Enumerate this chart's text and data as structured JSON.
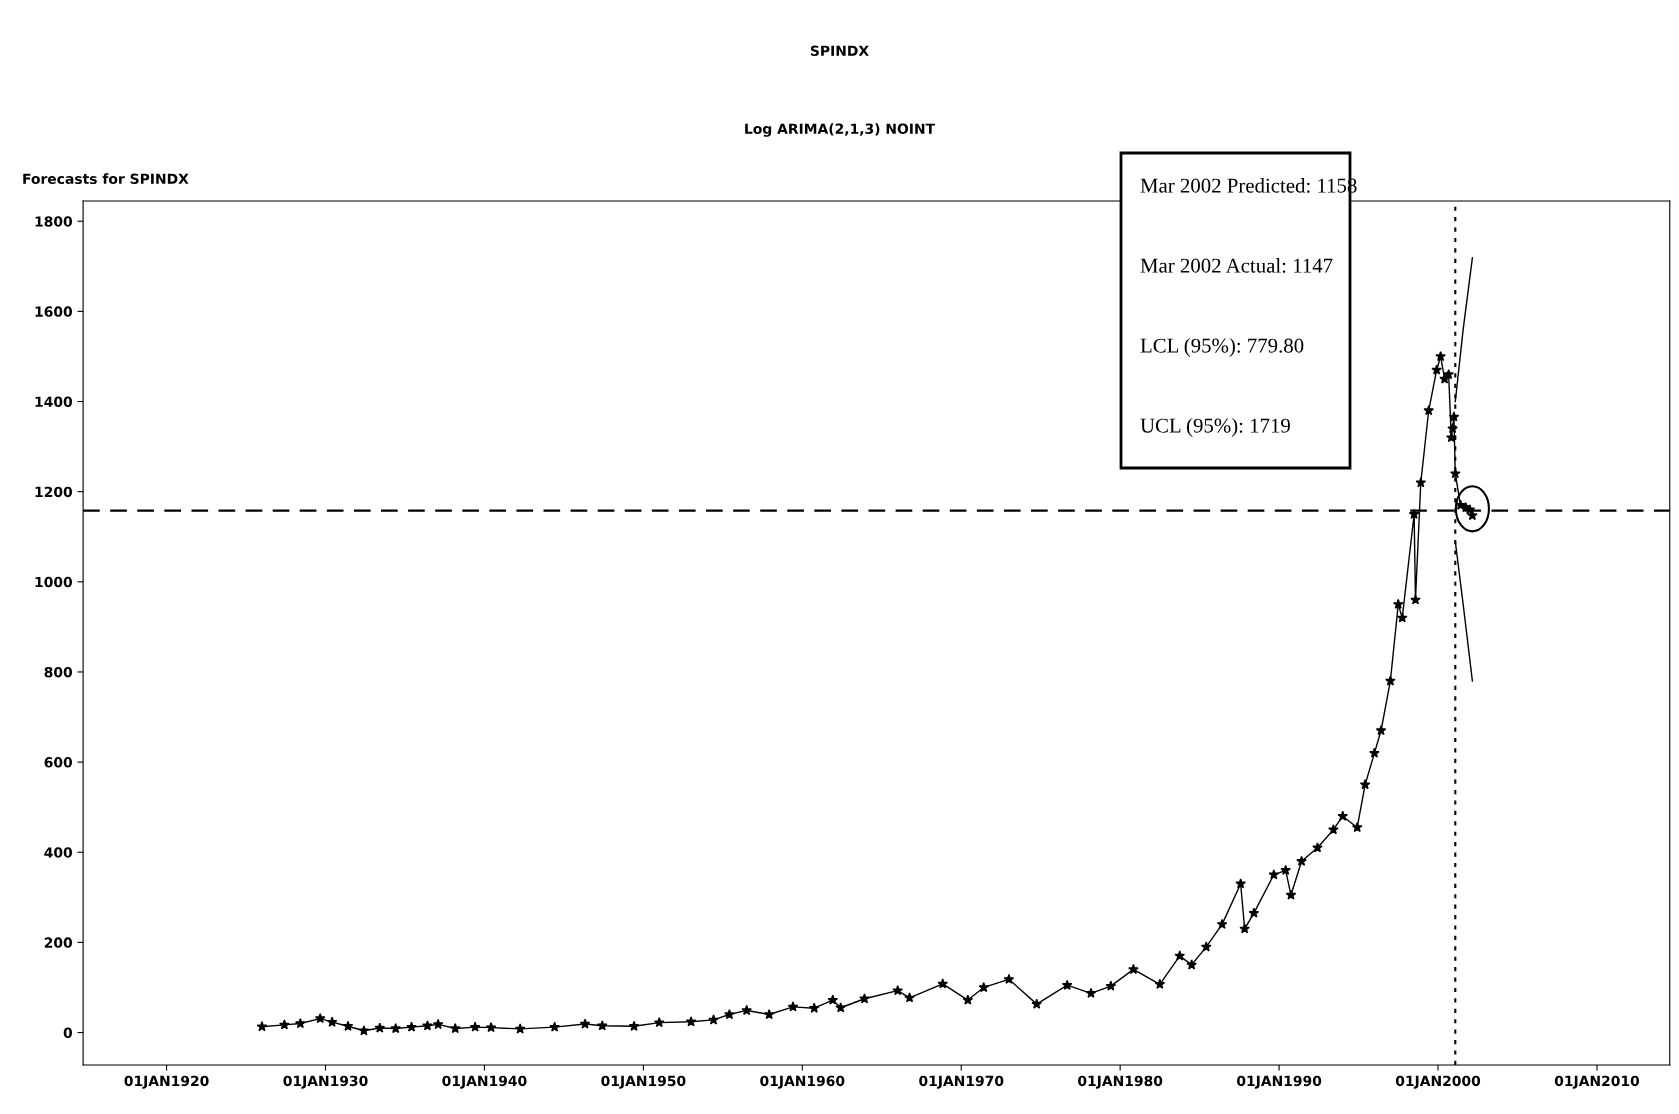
{
  "chart_data": {
    "type": "line",
    "title": "SPINDX",
    "subtitle": "Log ARIMA(2,1,3) NOINT",
    "ylabel": "Forecasts for SPINDX",
    "xlim": [
      "1914-10-01",
      "2014-08-01"
    ],
    "xticks": [
      {
        "value": "1920-01-01",
        "label": "01JAN1920"
      },
      {
        "value": "1930-01-01",
        "label": "01JAN1930"
      },
      {
        "value": "1940-01-01",
        "label": "01JAN1940"
      },
      {
        "value": "1950-01-01",
        "label": "01JAN1950"
      },
      {
        "value": "1960-01-01",
        "label": "01JAN1960"
      },
      {
        "value": "1970-01-01",
        "label": "01JAN1970"
      },
      {
        "value": "1980-01-01",
        "label": "01JAN1980"
      },
      {
        "value": "1990-01-01",
        "label": "01JAN1990"
      },
      {
        "value": "2000-01-01",
        "label": "01JAN2000"
      },
      {
        "value": "2010-01-01",
        "label": "01JAN2010"
      }
    ],
    "ylim": [
      -72,
      1845
    ],
    "yticks": [
      0,
      200,
      400,
      600,
      800,
      1000,
      1200,
      1400,
      1600,
      1800
    ],
    "grid": false,
    "legend": false,
    "series": [
      {
        "color": "#000000",
        "marker": "star",
        "line_style": "solid",
        "x": [
          "1926-01",
          "1927-06",
          "1928-06",
          "1929-09",
          "1930-06",
          "1931-06",
          "1932-06",
          "1933-06",
          "1934-06",
          "1935-06",
          "1936-06",
          "1937-02",
          "1938-03",
          "1939-06",
          "1940-06",
          "1942-04",
          "1944-06",
          "1946-05",
          "1947-06",
          "1949-06",
          "1951-01",
          "1953-01",
          "1954-06",
          "1955-06",
          "1956-07",
          "1957-12",
          "1959-06",
          "1960-10",
          "1961-12",
          "1962-06",
          "1963-12",
          "1966-01",
          "1966-10",
          "1968-11",
          "1970-06",
          "1971-06",
          "1973-01",
          "1974-10",
          "1976-09",
          "1978-03",
          "1979-06",
          "1980-11",
          "1982-07",
          "1983-10",
          "1984-07",
          "1985-06",
          "1986-06",
          "1987-08",
          "1987-11",
          "1988-06",
          "1989-09",
          "1990-06",
          "1990-10",
          "1991-06",
          "1992-06",
          "1993-06",
          "1994-01",
          "1994-12",
          "1995-06",
          "1996-01",
          "1996-06",
          "1997-01",
          "1997-07",
          "1997-10",
          "1998-07",
          "1998-08",
          "1998-12",
          "1999-06",
          "1999-12",
          "2000-03",
          "2000-06",
          "2000-09",
          "2000-11",
          "2000-12",
          "2001-01",
          "2001-02",
          "2001-06",
          "2001-10",
          "2002-01",
          "2002-03"
        ],
        "values": [
          13,
          17,
          20,
          31,
          23,
          14,
          4,
          10,
          9,
          12,
          15,
          18,
          9,
          12,
          11,
          8,
          12,
          19,
          15,
          14,
          22,
          24,
          28,
          40,
          49,
          40,
          57,
          54,
          72,
          55,
          75,
          93,
          77,
          108,
          72,
          100,
          118,
          63,
          105,
          87,
          103,
          140,
          107,
          170,
          150,
          190,
          240,
          330,
          230,
          265,
          350,
          360,
          305,
          380,
          410,
          450,
          480,
          455,
          550,
          620,
          670,
          780,
          950,
          920,
          1150,
          960,
          1220,
          1380,
          1470,
          1500,
          1450,
          1460,
          1320,
          1340,
          1366,
          1240,
          1170,
          1165,
          1160,
          1147
        ]
      },
      {
        "color": "#000000",
        "marker": "none",
        "line_style": "solid",
        "x": [
          "2001-02",
          "2001-08",
          "2002-03"
        ],
        "values": [
          1090,
          950,
          780
        ]
      },
      {
        "color": "#000000",
        "marker": "none",
        "line_style": "solid",
        "x": [
          "2001-02",
          "2001-08",
          "2002-03"
        ],
        "values": [
          1400,
          1560,
          1719
        ]
      }
    ],
    "ref_lines": [
      {
        "axis": "y",
        "value": 1158,
        "line_style": "dashed",
        "color": "#000000"
      },
      {
        "axis": "x",
        "value": "2001-02",
        "line_style": "dotted",
        "color": "#000000"
      }
    ],
    "annotations": [
      "Mar 2002 Predicted: 1158",
      "Mar 2002 Actual: 1147",
      "LCL (95%): 779.80",
      "UCL (95%): 1719"
    ]
  }
}
